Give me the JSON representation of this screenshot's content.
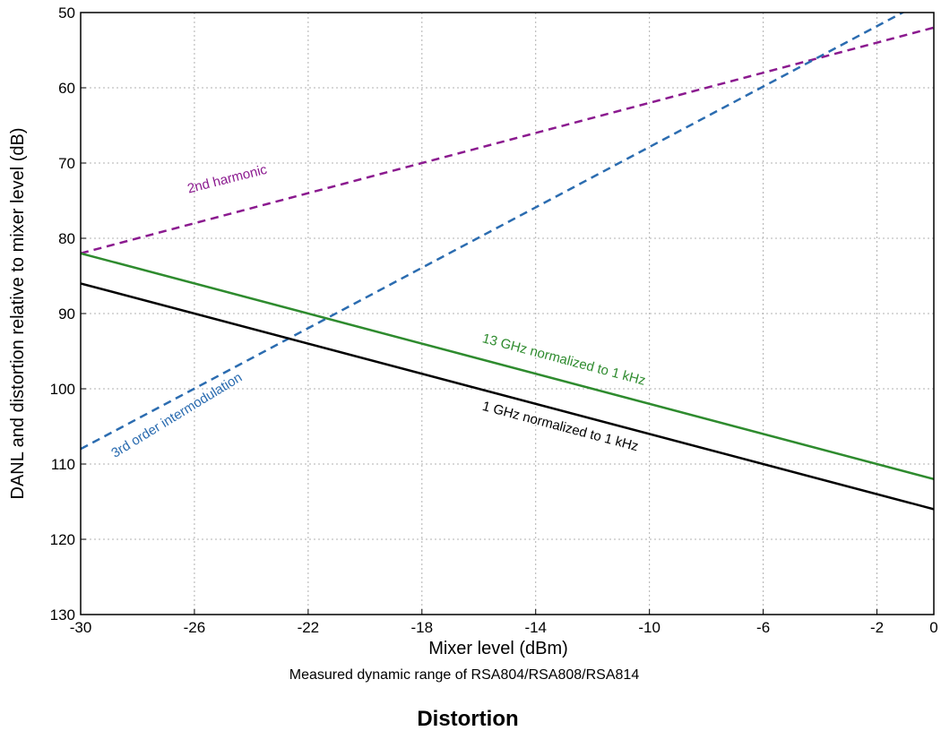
{
  "chart_data": {
    "type": "line",
    "xlabel": "Mixer level (dBm)",
    "ylabel": "DANL and distortion relative to mixer level (dB)",
    "caption": "Measured dynamic range of RSA804/RSA808/RSA814",
    "title": "Distortion",
    "xlim": [
      -30,
      0
    ],
    "ylim": [
      50,
      130
    ],
    "y_inverted": true,
    "grid": true,
    "x_ticks": [
      -30,
      -26,
      -22,
      -18,
      -14,
      -10,
      -6,
      -2,
      0
    ],
    "y_ticks": [
      50,
      60,
      70,
      80,
      90,
      100,
      110,
      120,
      130
    ],
    "series": [
      {
        "label": "2nd harmonic",
        "style": "dashed",
        "color": "#8b1a8f",
        "x": [
          -30,
          0
        ],
        "y": [
          82,
          52
        ]
      },
      {
        "label": "3rd order intermodulation",
        "style": "dashed",
        "color": "#2b6cb0",
        "x": [
          -30,
          -0.6
        ],
        "y": [
          108,
          49
        ]
      },
      {
        "label": "13 GHz normalized to 1 kHz",
        "style": "solid",
        "color": "#2e8b2e",
        "x": [
          -30,
          0
        ],
        "y": [
          82,
          112
        ]
      },
      {
        "label": "1 GHz normalized to 1 kHz",
        "style": "solid",
        "color": "#000000",
        "x": [
          -30,
          0
        ],
        "y": [
          86,
          116
        ]
      }
    ]
  }
}
